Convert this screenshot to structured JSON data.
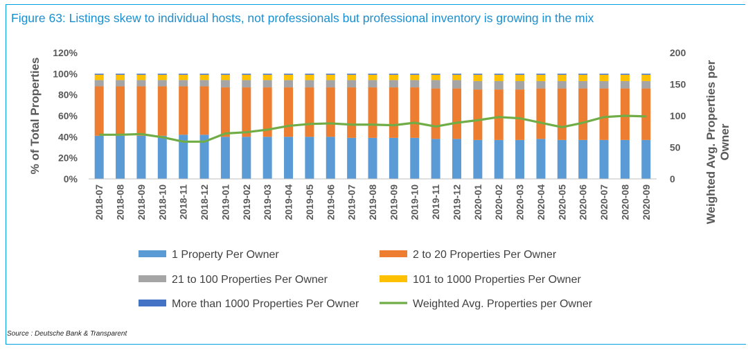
{
  "header": {
    "title": "Figure 63: Listings skew to individual hosts, not professionals but professional inventory is growing in the mix"
  },
  "footer": {
    "source": "Source : Deutsche Bank & Transparent"
  },
  "chart_data": {
    "type": "bar",
    "stacked": true,
    "categories": [
      "2018-07",
      "2018-08",
      "2018-09",
      "2018-10",
      "2018-11",
      "2018-12",
      "2019-01",
      "2019-02",
      "2019-03",
      "2019-04",
      "2019-05",
      "2019-06",
      "2019-07",
      "2019-08",
      "2019-09",
      "2019-10",
      "2019-11",
      "2019-12",
      "2020-01",
      "2020-02",
      "2020-03",
      "2020-04",
      "2020-05",
      "2020-06",
      "2020-07",
      "2020-08",
      "2020-09"
    ],
    "ylabel": "% of Total Properties",
    "ylabel_right": "Weighted Avg. Properties per Owner",
    "ylim": [
      0,
      1.2
    ],
    "ylim_right": [
      0,
      200
    ],
    "yticks": [
      "0%",
      "20%",
      "40%",
      "60%",
      "80%",
      "100%",
      "120%"
    ],
    "yticks_right": [
      "0",
      "50",
      "100",
      "150",
      "200"
    ],
    "series": [
      {
        "name": "1 Property Per Owner",
        "color": "#5b9bd5",
        "axis": "left",
        "values": [
          0.41,
          0.41,
          0.41,
          0.41,
          0.42,
          0.42,
          0.4,
          0.4,
          0.4,
          0.4,
          0.4,
          0.4,
          0.39,
          0.39,
          0.39,
          0.39,
          0.38,
          0.38,
          0.37,
          0.37,
          0.37,
          0.38,
          0.37,
          0.37,
          0.37,
          0.37,
          0.37
        ]
      },
      {
        "name": "2 to 20 Properties Per Owner",
        "color": "#ed7d31",
        "axis": "left",
        "values": [
          0.47,
          0.47,
          0.47,
          0.47,
          0.46,
          0.46,
          0.47,
          0.47,
          0.47,
          0.47,
          0.47,
          0.47,
          0.48,
          0.48,
          0.48,
          0.48,
          0.48,
          0.48,
          0.48,
          0.48,
          0.48,
          0.48,
          0.49,
          0.49,
          0.49,
          0.49,
          0.49
        ]
      },
      {
        "name": "21 to 100 Properties Per Owner",
        "color": "#a5a5a5",
        "axis": "left",
        "values": [
          0.06,
          0.06,
          0.06,
          0.06,
          0.06,
          0.06,
          0.07,
          0.07,
          0.07,
          0.07,
          0.07,
          0.07,
          0.07,
          0.07,
          0.07,
          0.07,
          0.08,
          0.08,
          0.08,
          0.08,
          0.08,
          0.07,
          0.07,
          0.07,
          0.07,
          0.07,
          0.07
        ]
      },
      {
        "name": "101 to 1000 Properties Per Owner",
        "color": "#ffc000",
        "axis": "left",
        "values": [
          0.05,
          0.05,
          0.05,
          0.05,
          0.05,
          0.05,
          0.05,
          0.05,
          0.05,
          0.05,
          0.05,
          0.05,
          0.05,
          0.05,
          0.05,
          0.05,
          0.05,
          0.05,
          0.06,
          0.06,
          0.06,
          0.06,
          0.06,
          0.06,
          0.06,
          0.06,
          0.06
        ]
      },
      {
        "name": "More than 1000 Properties Per Owner",
        "color": "#4472c4",
        "axis": "left",
        "values": [
          0.01,
          0.01,
          0.01,
          0.01,
          0.01,
          0.01,
          0.01,
          0.01,
          0.01,
          0.01,
          0.01,
          0.01,
          0.01,
          0.01,
          0.01,
          0.01,
          0.01,
          0.01,
          0.01,
          0.01,
          0.01,
          0.01,
          0.01,
          0.01,
          0.01,
          0.01,
          0.01
        ]
      },
      {
        "name": "Weighted Avg. Properties per Owner",
        "color": "#70ad47",
        "axis": "right",
        "type": "line",
        "values": [
          70,
          70,
          71,
          66,
          59,
          59,
          72,
          74,
          78,
          84,
          87,
          88,
          86,
          86,
          85,
          89,
          83,
          89,
          93,
          98,
          96,
          89,
          82,
          89,
          98,
          100,
          99
        ]
      }
    ],
    "legend_position": "bottom",
    "grid": false
  }
}
